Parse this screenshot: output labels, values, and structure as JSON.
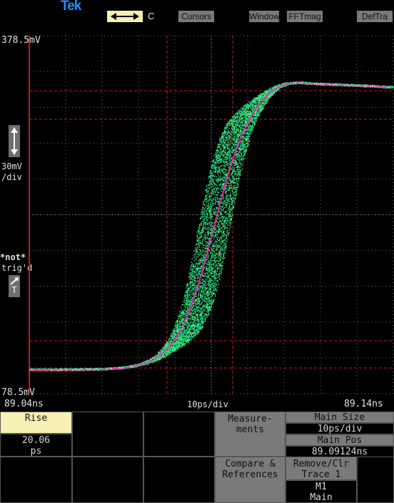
{
  "header": {
    "brand": "Tek",
    "channel": "C",
    "buttons": [
      "Cursors",
      "Window",
      "FFTmag",
      "DefTra"
    ]
  },
  "graticule": {
    "top_label": "378.5mV",
    "bottom_label": "78.5mV",
    "left_time": "89.04ns",
    "right_time": "89.14ns",
    "scale": "10ps/div"
  },
  "left_panel": {
    "volts_div": "30mV",
    "per_div": "/div",
    "trigger_status": "*not*",
    "trig_label": "trig'd",
    "trig_marker": "T"
  },
  "measurement": {
    "name": "Rise",
    "value": "20.06",
    "unit": "ps"
  },
  "menu": {
    "measurements": "Measure-\nments",
    "main_size_label": "Main Size",
    "main_size_value": "10ps/div",
    "main_pos_label": "Main Pos",
    "main_pos_value": "89.09124ns",
    "compare": "Compare &\nReferences",
    "remove": "Remove/Clr\nTrace 1",
    "m1": "M1",
    "main": "Main"
  },
  "colors": {
    "trace_main": "#19e36d",
    "trace_overlay": "#ff1fb0",
    "grid_red": "#c61a1a",
    "button_grey": "#7a7a7a",
    "highlight_yellow": "#f8f1b5"
  }
}
